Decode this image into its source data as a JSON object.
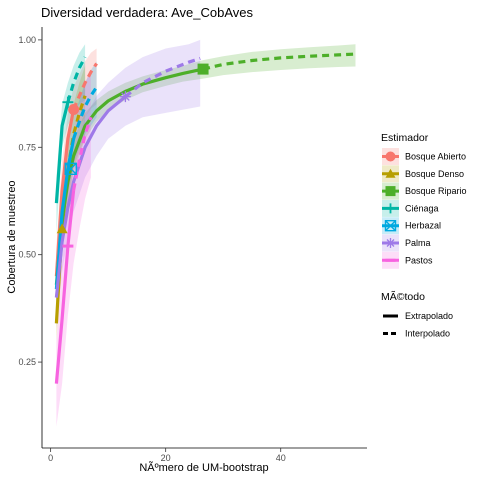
{
  "chart_data": {
    "type": "line",
    "title": "Diversidad verdadera: Ave_CobAves",
    "xlabel": "NÃºmero de UM-bootstrap",
    "ylabel": "Cobertura de muestreo",
    "xlim": [
      -1.5,
      55
    ],
    "ylim": [
      0.05,
      1.03
    ],
    "xticks": [
      0,
      20,
      40
    ],
    "yticks": [
      0.25,
      0.5,
      0.75,
      1.0
    ],
    "ytick_labels": [
      "0.25",
      "0.50",
      "0.75",
      "1.00"
    ],
    "grid": false,
    "legend_placement": "right",
    "legend_color_title": "Estimador",
    "legend_line_title": "MÃ©todo",
    "line_types": [
      {
        "label": "Extrapolado",
        "style": "solid"
      },
      {
        "label": "Interpolado",
        "style": "dashed"
      }
    ],
    "series": [
      {
        "name": "Bosque Abierto",
        "color": "#F8766D",
        "marker": "circle",
        "interp": {
          "x": [
            1,
            2,
            3,
            4
          ],
          "y": [
            0.45,
            0.65,
            0.77,
            0.838
          ]
        },
        "extrap": {
          "x": [
            4,
            5,
            6,
            7,
            8
          ],
          "y": [
            0.838,
            0.87,
            0.9,
            0.925,
            0.945
          ]
        },
        "obs": {
          "x": 4,
          "y": 0.838
        },
        "ci": {
          "x": [
            1,
            2,
            3,
            4,
            5,
            6,
            7,
            8
          ],
          "lo": [
            0.38,
            0.56,
            0.7,
            0.78,
            0.8,
            0.82,
            0.84,
            0.85
          ],
          "hi": [
            0.52,
            0.72,
            0.83,
            0.89,
            0.92,
            0.95,
            0.97,
            0.98
          ]
        }
      },
      {
        "name": "Bosque Denso",
        "color": "#B79F00",
        "marker": "triangle",
        "interp": {
          "x": [
            1,
            2,
            3
          ],
          "y": [
            0.34,
            0.56,
            0.7
          ]
        },
        "extrap": {
          "x": [
            3,
            4,
            5,
            6
          ],
          "y": [
            0.7,
            0.78,
            0.83,
            0.87
          ]
        },
        "obs": {
          "x": 2,
          "y": 0.56
        },
        "ci": {
          "x": [
            1,
            2,
            3,
            4,
            5,
            6
          ],
          "lo": [
            0.3,
            0.5,
            0.62,
            0.7,
            0.74,
            0.77
          ],
          "hi": [
            0.4,
            0.62,
            0.77,
            0.85,
            0.9,
            0.94
          ]
        }
      },
      {
        "name": "Bosque Ripario",
        "color": "#4DAF29",
        "marker": "square",
        "interp": {
          "x": [
            1,
            2,
            3,
            4,
            6,
            8,
            10,
            13,
            16,
            20,
            23,
            26.5
          ],
          "y": [
            0.43,
            0.58,
            0.67,
            0.73,
            0.8,
            0.835,
            0.858,
            0.88,
            0.897,
            0.912,
            0.922,
            0.932
          ]
        },
        "extrap": {
          "x": [
            26.5,
            30,
            35,
            40,
            45,
            50,
            53
          ],
          "y": [
            0.932,
            0.943,
            0.952,
            0.958,
            0.962,
            0.965,
            0.967
          ]
        },
        "obs": {
          "x": 26.5,
          "y": 0.932
        },
        "ci": {
          "x": [
            1,
            2,
            3,
            4,
            6,
            8,
            10,
            13,
            16,
            20,
            23,
            26.5,
            30,
            35,
            40,
            45,
            50,
            53
          ],
          "lo": [
            0.38,
            0.52,
            0.62,
            0.69,
            0.77,
            0.81,
            0.835,
            0.86,
            0.878,
            0.893,
            0.903,
            0.91,
            0.918,
            0.925,
            0.93,
            0.934,
            0.937,
            0.938
          ],
          "hi": [
            0.48,
            0.64,
            0.72,
            0.77,
            0.83,
            0.86,
            0.88,
            0.9,
            0.915,
            0.93,
            0.94,
            0.953,
            0.962,
            0.972,
            0.978,
            0.983,
            0.987,
            0.99
          ]
        }
      },
      {
        "name": "Ciénaga",
        "color": "#00B5A5",
        "marker": "plus",
        "interp": {
          "x": [
            1,
            2,
            3
          ],
          "y": [
            0.62,
            0.8,
            0.855
          ]
        },
        "extrap": {
          "x": [
            3,
            4,
            5,
            6
          ],
          "y": [
            0.855,
            0.9,
            0.935,
            0.96
          ]
        },
        "obs": {
          "x": 3,
          "y": 0.855
        },
        "ci": {
          "x": [
            1,
            2,
            3,
            4,
            5,
            6
          ],
          "lo": [
            0.55,
            0.75,
            0.8,
            0.83,
            0.85,
            0.86
          ],
          "hi": [
            0.68,
            0.85,
            0.9,
            0.94,
            0.97,
            0.99
          ]
        }
      },
      {
        "name": "Herbazal",
        "color": "#00A9E0",
        "marker": "boxx",
        "interp": {
          "x": [
            1,
            2,
            3,
            4
          ],
          "y": [
            0.42,
            0.6,
            0.7,
            0.77
          ]
        },
        "extrap": {
          "x": [
            4,
            5,
            6,
            7,
            8
          ],
          "y": [
            0.77,
            0.81,
            0.845,
            0.87,
            0.89
          ]
        },
        "obs": {
          "x": 3.5,
          "y": 0.7
        },
        "ci": {
          "x": [
            1,
            2,
            3,
            4,
            5,
            6,
            7,
            8
          ],
          "lo": [
            0.36,
            0.54,
            0.64,
            0.71,
            0.75,
            0.78,
            0.8,
            0.82
          ],
          "hi": [
            0.48,
            0.66,
            0.76,
            0.82,
            0.86,
            0.9,
            0.93,
            0.95
          ]
        }
      },
      {
        "name": "Palma",
        "color": "#9E7AE8",
        "marker": "asterisk",
        "interp": {
          "x": [
            1,
            2,
            3,
            4,
            6,
            8,
            10,
            13
          ],
          "y": [
            0.4,
            0.53,
            0.61,
            0.67,
            0.75,
            0.8,
            0.835,
            0.868
          ]
        },
        "extrap": {
          "x": [
            13,
            16,
            20,
            24,
            26
          ],
          "y": [
            0.868,
            0.9,
            0.927,
            0.948,
            0.957
          ]
        },
        "obs": {
          "x": 13,
          "y": 0.868
        },
        "ci": {
          "x": [
            1,
            2,
            3,
            4,
            6,
            8,
            10,
            13,
            16,
            20,
            24,
            26
          ],
          "lo": [
            0.33,
            0.46,
            0.54,
            0.6,
            0.68,
            0.73,
            0.77,
            0.8,
            0.82,
            0.83,
            0.84,
            0.845
          ],
          "hi": [
            0.47,
            0.6,
            0.68,
            0.74,
            0.82,
            0.87,
            0.9,
            0.935,
            0.96,
            0.98,
            0.99,
            1.0
          ]
        }
      },
      {
        "name": "Pastos",
        "color": "#F763E0",
        "marker": "minus",
        "interp": {
          "x": [
            1,
            2,
            3,
            4
          ],
          "y": [
            0.2,
            0.35,
            0.52,
            0.65
          ]
        },
        "extrap": {
          "x": [
            4,
            5,
            6,
            7
          ],
          "y": [
            0.65,
            0.72,
            0.78,
            0.82
          ]
        },
        "obs": {
          "x": 3,
          "y": 0.52
        },
        "ci": {
          "x": [
            1,
            2,
            3,
            4,
            5,
            6,
            7
          ],
          "lo": [
            0.1,
            0.2,
            0.36,
            0.48,
            0.56,
            0.63,
            0.68
          ],
          "hi": [
            0.3,
            0.48,
            0.66,
            0.78,
            0.85,
            0.9,
            0.93
          ]
        }
      }
    ]
  }
}
